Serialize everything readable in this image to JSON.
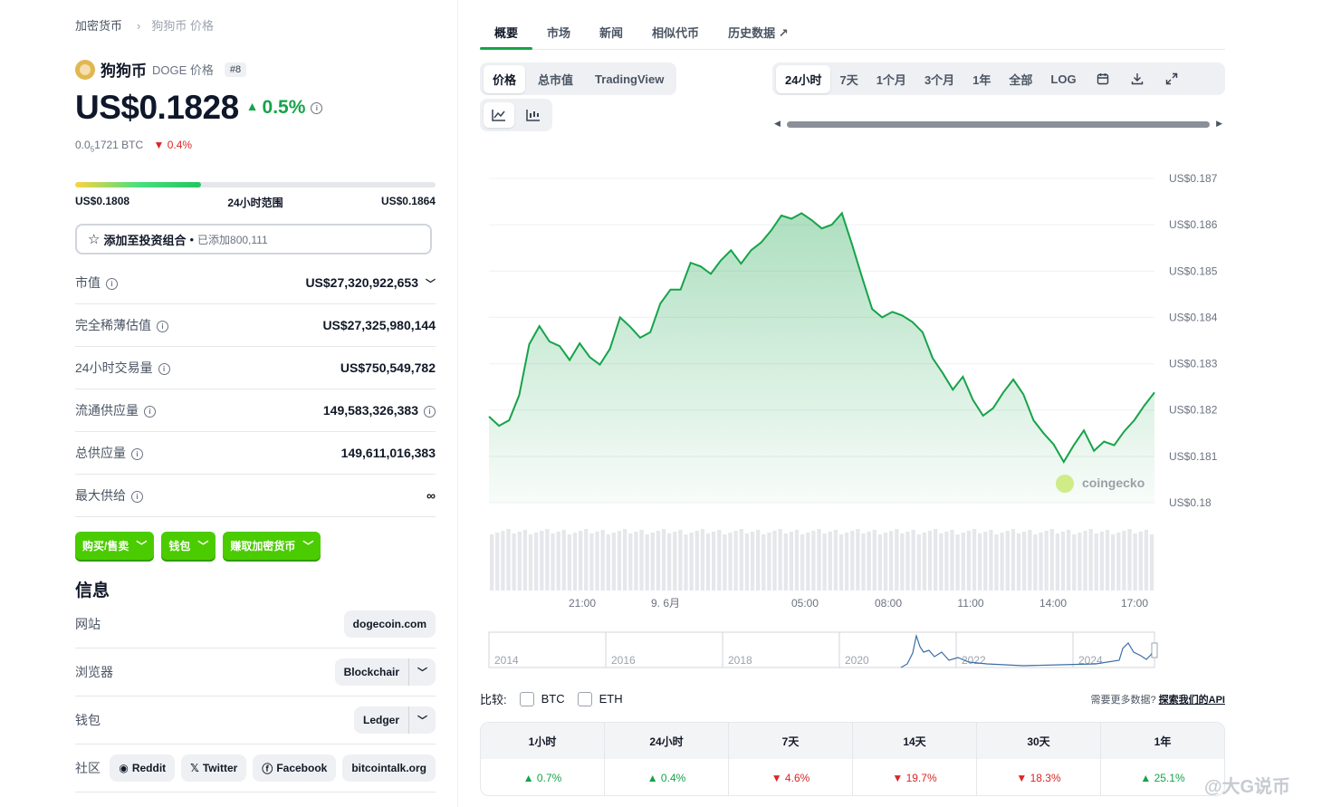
{
  "breadcrumb": {
    "root": "加密货币",
    "current": "狗狗币 价格"
  },
  "coin": {
    "name": "狗狗币",
    "symbol_text": "DOGE 价格",
    "rank": "#8",
    "price": "US$0.1828",
    "change": "0.5%",
    "btc_prefix": "0.0",
    "btc_sub": "5",
    "btc_rest": "1721 BTC",
    "btc_change": "0.4%"
  },
  "range": {
    "low": "US$0.1808",
    "label": "24小时范围",
    "high": "US$0.1864",
    "fill_fraction": 0.35
  },
  "portfolio": {
    "label": "添加至投资组合",
    "sep": "•",
    "added": "已添加800,111"
  },
  "stats": [
    {
      "k": "市值",
      "v": "US$27,320,922,653",
      "dropdown": true
    },
    {
      "k": "完全稀薄估值",
      "v": "US$27,325,980,144"
    },
    {
      "k": "24小时交易量",
      "v": "US$750,549,782"
    },
    {
      "k": "流通供应量",
      "v": "149,583,326,383",
      "vinfo": true
    },
    {
      "k": "总供应量",
      "v": "149,611,016,383"
    },
    {
      "k": "最大供给",
      "v": "∞"
    }
  ],
  "actions": [
    "购买/售卖",
    "钱包",
    "赚取加密货币"
  ],
  "info": {
    "title": "信息",
    "rows": [
      {
        "k": "网站",
        "v": "dogecoin.com"
      },
      {
        "k": "浏览器",
        "v": "Blockchair"
      },
      {
        "k": "钱包",
        "v": "Ledger"
      },
      {
        "k": "社区",
        "items": [
          "Reddit",
          "Twitter",
          "Facebook",
          "bitcointalk.org"
        ]
      }
    ]
  },
  "tabs": [
    "概要",
    "市场",
    "新闻",
    "相似代币",
    "历史数据"
  ],
  "chart_controls": {
    "type_tabs": [
      "价格",
      "总市值",
      "TradingView"
    ],
    "ranges": [
      "24小时",
      "7天",
      "1个月",
      "3个月",
      "1年",
      "全部",
      "LOG"
    ]
  },
  "chart_data": {
    "type": "area",
    "y_ticks": [
      "US$0.187",
      "US$0.186",
      "US$0.185",
      "US$0.184",
      "US$0.183",
      "US$0.182",
      "US$0.181",
      "US$0.18"
    ],
    "ylim": [
      0.18,
      0.187
    ],
    "x_ticks": [
      "21:00",
      "9. 6月",
      "05:00",
      "08:00",
      "11:00",
      "14:00",
      "17:00"
    ],
    "y": [
      0.18186,
      0.18166,
      0.18178,
      0.18232,
      0.18342,
      0.18381,
      0.18348,
      0.18338,
      0.18308,
      0.18344,
      0.18314,
      0.18298,
      0.18332,
      0.184,
      0.1838,
      0.18356,
      0.18368,
      0.1843,
      0.1846,
      0.1846,
      0.18518,
      0.1851,
      0.18494,
      0.18523,
      0.18545,
      0.18516,
      0.18545,
      0.18562,
      0.18588,
      0.1862,
      0.18613,
      0.18625,
      0.1861,
      0.18592,
      0.186,
      0.18625,
      0.18558,
      0.18487,
      0.18418,
      0.184,
      0.18412,
      0.18404,
      0.1839,
      0.18368,
      0.18312,
      0.1828,
      0.18244,
      0.18272,
      0.18222,
      0.18188,
      0.18204,
      0.18238,
      0.18266,
      0.18234,
      0.18178,
      0.1815,
      0.18126,
      0.18088,
      0.18124,
      0.18156,
      0.18112,
      0.18132,
      0.18124,
      0.18154,
      0.18178,
      0.1821,
      0.18238
    ],
    "volume": "hourly bars",
    "overview_years": [
      "2014",
      "2016",
      "2018",
      "2020",
      "2022",
      "2024"
    ],
    "watermark": "coingecko"
  },
  "compare": {
    "label": "比较:",
    "options": [
      "BTC",
      "ETH"
    ],
    "more_text": "需要更多数据?",
    "api_link": "探索我们的API"
  },
  "performance": {
    "headers": [
      "1小时",
      "24小时",
      "7天",
      "14天",
      "30天",
      "1年"
    ],
    "values": [
      "0.7%",
      "0.4%",
      "4.6%",
      "19.7%",
      "18.3%",
      "25.1%"
    ],
    "directions": [
      "up",
      "up",
      "down",
      "down",
      "down",
      "up"
    ]
  },
  "colors": {
    "accent": "#16a34a",
    "button": "#4bcc00",
    "down": "#dc2626"
  },
  "watermark": "@大G说币"
}
